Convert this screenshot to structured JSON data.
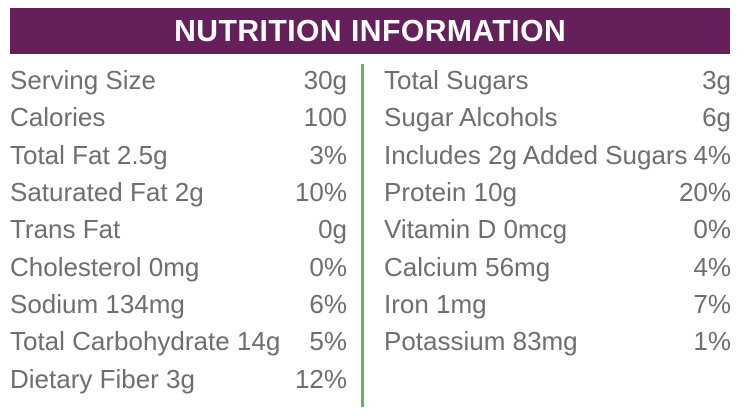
{
  "header": {
    "title": "NUTRITION INFORMATION"
  },
  "colors": {
    "background": "#ffffff",
    "header_bg": "#65205c",
    "header_text": "#ffffff",
    "body_text": "#6e6f72",
    "divider": "#5cb85c"
  },
  "columns": {
    "left": [
      {
        "label": "Serving Size",
        "value": "30g"
      },
      {
        "label": "Calories",
        "value": "100"
      },
      {
        "label": "Total Fat 2.5g",
        "value": "3%"
      },
      {
        "label": "Saturated Fat 2g",
        "value": "10%"
      },
      {
        "label": "Trans Fat",
        "value": "0g"
      },
      {
        "label": "Cholesterol 0mg",
        "value": "0%"
      },
      {
        "label": "Sodium 134mg",
        "value": "6%"
      },
      {
        "label": "Total Carbohydrate 14g",
        "value": "5%"
      },
      {
        "label": "Dietary Fiber 3g",
        "value": "12%"
      }
    ],
    "right": [
      {
        "label": "Total Sugars",
        "value": "3g"
      },
      {
        "label": "Sugar Alcohols",
        "value": "6g"
      },
      {
        "label": "Includes 2g Added Sugars",
        "value": "4%"
      },
      {
        "label": "Protein 10g",
        "value": "20%"
      },
      {
        "label": "Vitamin D 0mcg",
        "value": "0%"
      },
      {
        "label": "Calcium 56mg",
        "value": "4%"
      },
      {
        "label": "Iron 1mg",
        "value": "7%"
      },
      {
        "label": "Potassium 83mg",
        "value": "1%"
      }
    ]
  }
}
